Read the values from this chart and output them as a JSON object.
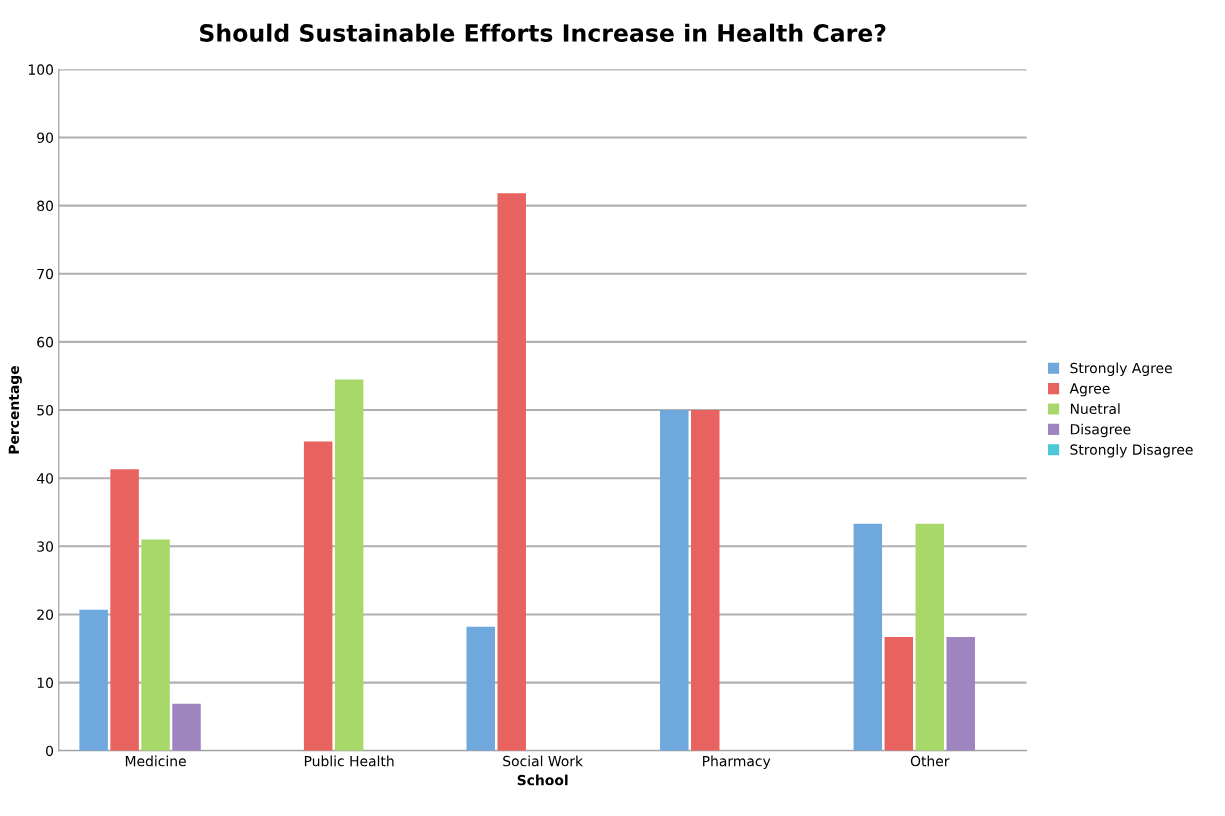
{
  "chart_data": {
    "type": "bar",
    "title": "Should Sustainable Efforts Increase in Health Care?",
    "xlabel": "School",
    "ylabel": "Percentage",
    "categories": [
      "Medicine",
      "Public Health",
      "Social Work",
      "Pharmacy",
      "Other"
    ],
    "series": [
      {
        "name": "Strongly Agree",
        "color": "#6fa8dc",
        "values": [
          20.7,
          0,
          18.2,
          50,
          33.3
        ]
      },
      {
        "name": "Agree",
        "color": "#e8625f",
        "values": [
          41.3,
          45.4,
          81.8,
          50,
          16.7
        ]
      },
      {
        "name": "Nuetral",
        "color": "#a8d86a",
        "values": [
          31,
          54.5,
          0,
          0,
          33.3
        ]
      },
      {
        "name": "Disagree",
        "color": "#9f85c0",
        "values": [
          6.9,
          0,
          0,
          0,
          16.7
        ]
      },
      {
        "name": "Strongly Disagree",
        "color": "#4bc8d8",
        "values": [
          0,
          0,
          0,
          0,
          0
        ]
      }
    ],
    "ylim": [
      0,
      100
    ],
    "yticks": [
      0,
      10,
      20,
      30,
      40,
      50,
      60,
      70,
      80,
      90,
      100
    ],
    "grid": "y",
    "legend": "right"
  }
}
